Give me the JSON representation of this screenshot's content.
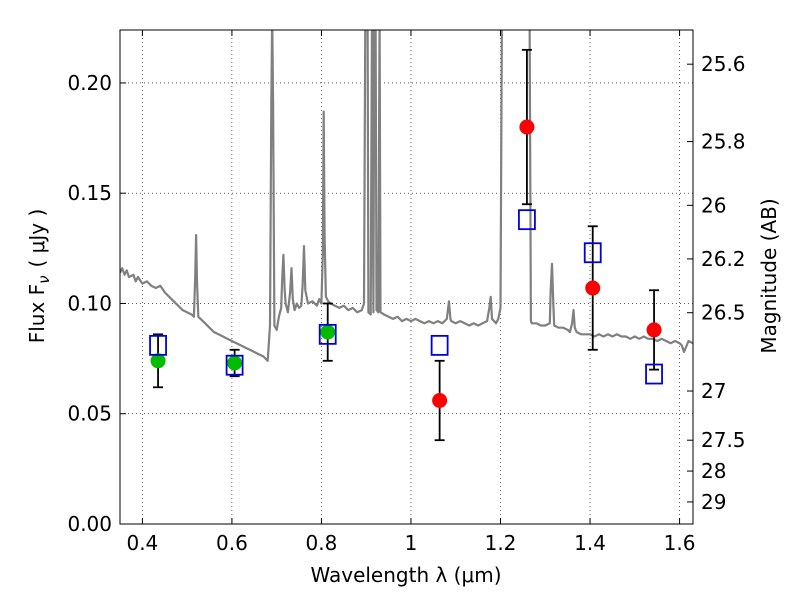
{
  "chart_data": {
    "type": "scatter",
    "xlabel": "Wavelength  λ (μm)",
    "ylabel": "Flux  F",
    "ylabel_sub": "ν",
    "ylabel_unit": "( μJy )",
    "y2label": "Magnitude (AB)",
    "xlim": [
      0.35,
      1.63
    ],
    "ylim": [
      0.0,
      0.224
    ],
    "grid": true,
    "x_ticks": [
      {
        "value": 0.4,
        "label": "0.4"
      },
      {
        "value": 0.6,
        "label": "0.6"
      },
      {
        "value": 0.8,
        "label": "0.8"
      },
      {
        "value": 1.0,
        "label": "1"
      },
      {
        "value": 1.2,
        "label": "1.2"
      },
      {
        "value": 1.4,
        "label": "1.4"
      },
      {
        "value": 1.6,
        "label": "1.6"
      }
    ],
    "y_ticks": [
      {
        "value": 0.0,
        "label": "0.00"
      },
      {
        "value": 0.05,
        "label": "0.05"
      },
      {
        "value": 0.1,
        "label": "0.10"
      },
      {
        "value": 0.15,
        "label": "0.15"
      },
      {
        "value": 0.2,
        "label": "0.20"
      }
    ],
    "y2_ticks": [
      {
        "flux": 0.2085,
        "label": "25.6"
      },
      {
        "flux": 0.1734,
        "label": "25.8"
      },
      {
        "flux": 0.1445,
        "label": "26"
      },
      {
        "flux": 0.1202,
        "label": "26.2"
      },
      {
        "flux": 0.0958,
        "label": "26.5"
      },
      {
        "flux": 0.0603,
        "label": "27"
      },
      {
        "flux": 0.038,
        "label": "27.5"
      },
      {
        "flux": 0.024,
        "label": "28"
      },
      {
        "flux": 0.01,
        "label": "29"
      }
    ],
    "model_spectrum": {
      "color": "#808080",
      "points": [
        [
          0.35,
          0.114
        ],
        [
          0.355,
          0.116
        ],
        [
          0.36,
          0.113
        ],
        [
          0.365,
          0.115
        ],
        [
          0.37,
          0.112
        ],
        [
          0.38,
          0.113
        ],
        [
          0.385,
          0.11
        ],
        [
          0.39,
          0.112
        ],
        [
          0.4,
          0.109
        ],
        [
          0.41,
          0.11
        ],
        [
          0.42,
          0.108
        ],
        [
          0.43,
          0.107
        ],
        [
          0.44,
          0.108
        ],
        [
          0.45,
          0.105
        ],
        [
          0.46,
          0.103
        ],
        [
          0.47,
          0.101
        ],
        [
          0.48,
          0.099
        ],
        [
          0.49,
          0.097
        ],
        [
          0.5,
          0.096
        ],
        [
          0.51,
          0.095
        ],
        [
          0.515,
          0.094
        ],
        [
          0.518,
          0.112
        ],
        [
          0.52,
          0.131
        ],
        [
          0.522,
          0.11
        ],
        [
          0.525,
          0.094
        ],
        [
          0.53,
          0.093
        ],
        [
          0.54,
          0.091
        ],
        [
          0.55,
          0.089
        ],
        [
          0.56,
          0.087
        ],
        [
          0.57,
          0.086
        ],
        [
          0.58,
          0.085
        ],
        [
          0.59,
          0.084
        ],
        [
          0.6,
          0.083
        ],
        [
          0.61,
          0.082
        ],
        [
          0.62,
          0.081
        ],
        [
          0.63,
          0.08
        ],
        [
          0.64,
          0.079
        ],
        [
          0.65,
          0.078
        ],
        [
          0.66,
          0.077
        ],
        [
          0.67,
          0.076
        ],
        [
          0.675,
          0.075
        ],
        [
          0.68,
          0.074
        ],
        [
          0.685,
          0.09
        ],
        [
          0.688,
          0.19
        ],
        [
          0.69,
          0.23
        ],
        [
          0.692,
          0.19
        ],
        [
          0.695,
          0.09
        ],
        [
          0.7,
          0.088
        ],
        [
          0.705,
          0.094
        ],
        [
          0.71,
          0.098
        ],
        [
          0.712,
          0.11
        ],
        [
          0.715,
          0.122
        ],
        [
          0.718,
          0.106
        ],
        [
          0.72,
          0.1
        ],
        [
          0.725,
          0.096
        ],
        [
          0.73,
          0.105
        ],
        [
          0.733,
          0.116
        ],
        [
          0.736,
          0.102
        ],
        [
          0.74,
          0.097
        ],
        [
          0.745,
          0.1
        ],
        [
          0.75,
          0.098
        ],
        [
          0.755,
          0.099
        ],
        [
          0.758,
          0.108
        ],
        [
          0.761,
          0.126
        ],
        [
          0.764,
          0.106
        ],
        [
          0.77,
          0.1
        ],
        [
          0.78,
          0.101
        ],
        [
          0.79,
          0.099
        ],
        [
          0.795,
          0.102
        ],
        [
          0.8,
          0.1
        ],
        [
          0.803,
          0.122
        ],
        [
          0.805,
          0.187
        ],
        [
          0.807,
          0.13
        ],
        [
          0.81,
          0.103
        ],
        [
          0.815,
          0.101
        ],
        [
          0.82,
          0.1
        ],
        [
          0.83,
          0.099
        ],
        [
          0.84,
          0.098
        ],
        [
          0.85,
          0.099
        ],
        [
          0.86,
          0.097
        ],
        [
          0.87,
          0.098
        ],
        [
          0.88,
          0.096
        ],
        [
          0.89,
          0.097
        ],
        [
          0.895,
          0.1
        ],
        [
          0.898,
          0.23
        ],
        [
          0.903,
          0.23
        ],
        [
          0.905,
          0.096
        ],
        [
          0.91,
          0.095
        ],
        [
          0.913,
          0.23
        ],
        [
          0.916,
          0.096
        ],
        [
          0.918,
          0.23
        ],
        [
          0.921,
          0.23
        ],
        [
          0.923,
          0.097
        ],
        [
          0.927,
          0.096
        ],
        [
          0.93,
          0.23
        ],
        [
          0.932,
          0.096
        ],
        [
          0.94,
          0.095
        ],
        [
          0.95,
          0.094
        ],
        [
          0.96,
          0.093
        ],
        [
          0.97,
          0.094
        ],
        [
          0.98,
          0.092
        ],
        [
          0.99,
          0.093
        ],
        [
          1.0,
          0.092
        ],
        [
          1.01,
          0.093
        ],
        [
          1.02,
          0.092
        ],
        [
          1.03,
          0.091
        ],
        [
          1.04,
          0.092
        ],
        [
          1.05,
          0.091
        ],
        [
          1.06,
          0.092
        ],
        [
          1.07,
          0.091
        ],
        [
          1.075,
          0.092
        ],
        [
          1.08,
          0.093
        ],
        [
          1.085,
          0.101
        ],
        [
          1.088,
          0.093
        ],
        [
          1.09,
          0.092
        ],
        [
          1.1,
          0.091
        ],
        [
          1.11,
          0.092
        ],
        [
          1.12,
          0.091
        ],
        [
          1.13,
          0.09
        ],
        [
          1.14,
          0.091
        ],
        [
          1.15,
          0.09
        ],
        [
          1.16,
          0.091
        ],
        [
          1.17,
          0.092
        ],
        [
          1.175,
          0.098
        ],
        [
          1.178,
          0.103
        ],
        [
          1.181,
          0.093
        ],
        [
          1.19,
          0.091
        ],
        [
          1.195,
          0.093
        ],
        [
          1.2,
          0.098
        ],
        [
          1.203,
          0.23
        ],
        [
          1.215,
          0.23
        ],
        [
          1.22,
          0.23
        ],
        [
          1.23,
          0.23
        ],
        [
          1.24,
          0.23
        ],
        [
          1.25,
          0.23
        ],
        [
          1.26,
          0.23
        ],
        [
          1.265,
          0.23
        ],
        [
          1.268,
          0.092
        ],
        [
          1.27,
          0.091
        ],
        [
          1.28,
          0.091
        ],
        [
          1.29,
          0.09
        ],
        [
          1.3,
          0.09
        ],
        [
          1.31,
          0.091
        ],
        [
          1.312,
          0.105
        ],
        [
          1.315,
          0.118
        ],
        [
          1.318,
          0.1
        ],
        [
          1.32,
          0.09
        ],
        [
          1.33,
          0.089
        ],
        [
          1.34,
          0.089
        ],
        [
          1.35,
          0.088
        ],
        [
          1.355,
          0.087
        ],
        [
          1.36,
          0.091
        ],
        [
          1.363,
          0.097
        ],
        [
          1.366,
          0.089
        ],
        [
          1.37,
          0.087
        ],
        [
          1.38,
          0.086
        ],
        [
          1.39,
          0.086
        ],
        [
          1.4,
          0.086
        ],
        [
          1.41,
          0.085
        ],
        [
          1.42,
          0.086
        ],
        [
          1.43,
          0.085
        ],
        [
          1.44,
          0.086
        ],
        [
          1.45,
          0.085
        ],
        [
          1.46,
          0.086
        ],
        [
          1.47,
          0.085
        ],
        [
          1.48,
          0.085
        ],
        [
          1.49,
          0.084
        ],
        [
          1.5,
          0.085
        ],
        [
          1.51,
          0.084
        ],
        [
          1.52,
          0.085
        ],
        [
          1.53,
          0.084
        ],
        [
          1.54,
          0.084
        ],
        [
          1.55,
          0.083
        ],
        [
          1.56,
          0.084
        ],
        [
          1.57,
          0.083
        ],
        [
          1.58,
          0.082
        ],
        [
          1.59,
          0.083
        ],
        [
          1.6,
          0.082
        ],
        [
          1.605,
          0.081
        ],
        [
          1.61,
          0.078
        ],
        [
          1.62,
          0.083
        ],
        [
          1.63,
          0.082
        ]
      ]
    },
    "series": [
      {
        "marker": "circle",
        "color": "#00bb00",
        "points": [
          {
            "x": 0.435,
            "y": 0.074,
            "err": 0.012
          },
          {
            "x": 0.606,
            "y": 0.073,
            "err": 0.006
          },
          {
            "x": 0.814,
            "y": 0.087,
            "err": 0.013
          }
        ]
      },
      {
        "marker": "circle",
        "color": "#ff0000",
        "points": [
          {
            "x": 1.064,
            "y": 0.056,
            "err": 0.018
          },
          {
            "x": 1.259,
            "y": 0.18,
            "err": 0.035
          },
          {
            "x": 1.406,
            "y": 0.107,
            "err": 0.028
          },
          {
            "x": 1.543,
            "y": 0.088,
            "err": 0.018
          }
        ]
      },
      {
        "marker": "square-open",
        "color": "#0000dd",
        "points": [
          {
            "x": 0.435,
            "y": 0.081
          },
          {
            "x": 0.606,
            "y": 0.072
          },
          {
            "x": 0.814,
            "y": 0.086
          },
          {
            "x": 1.064,
            "y": 0.081
          },
          {
            "x": 1.259,
            "y": 0.138
          },
          {
            "x": 1.406,
            "y": 0.123
          },
          {
            "x": 1.543,
            "y": 0.068
          }
        ]
      }
    ]
  }
}
